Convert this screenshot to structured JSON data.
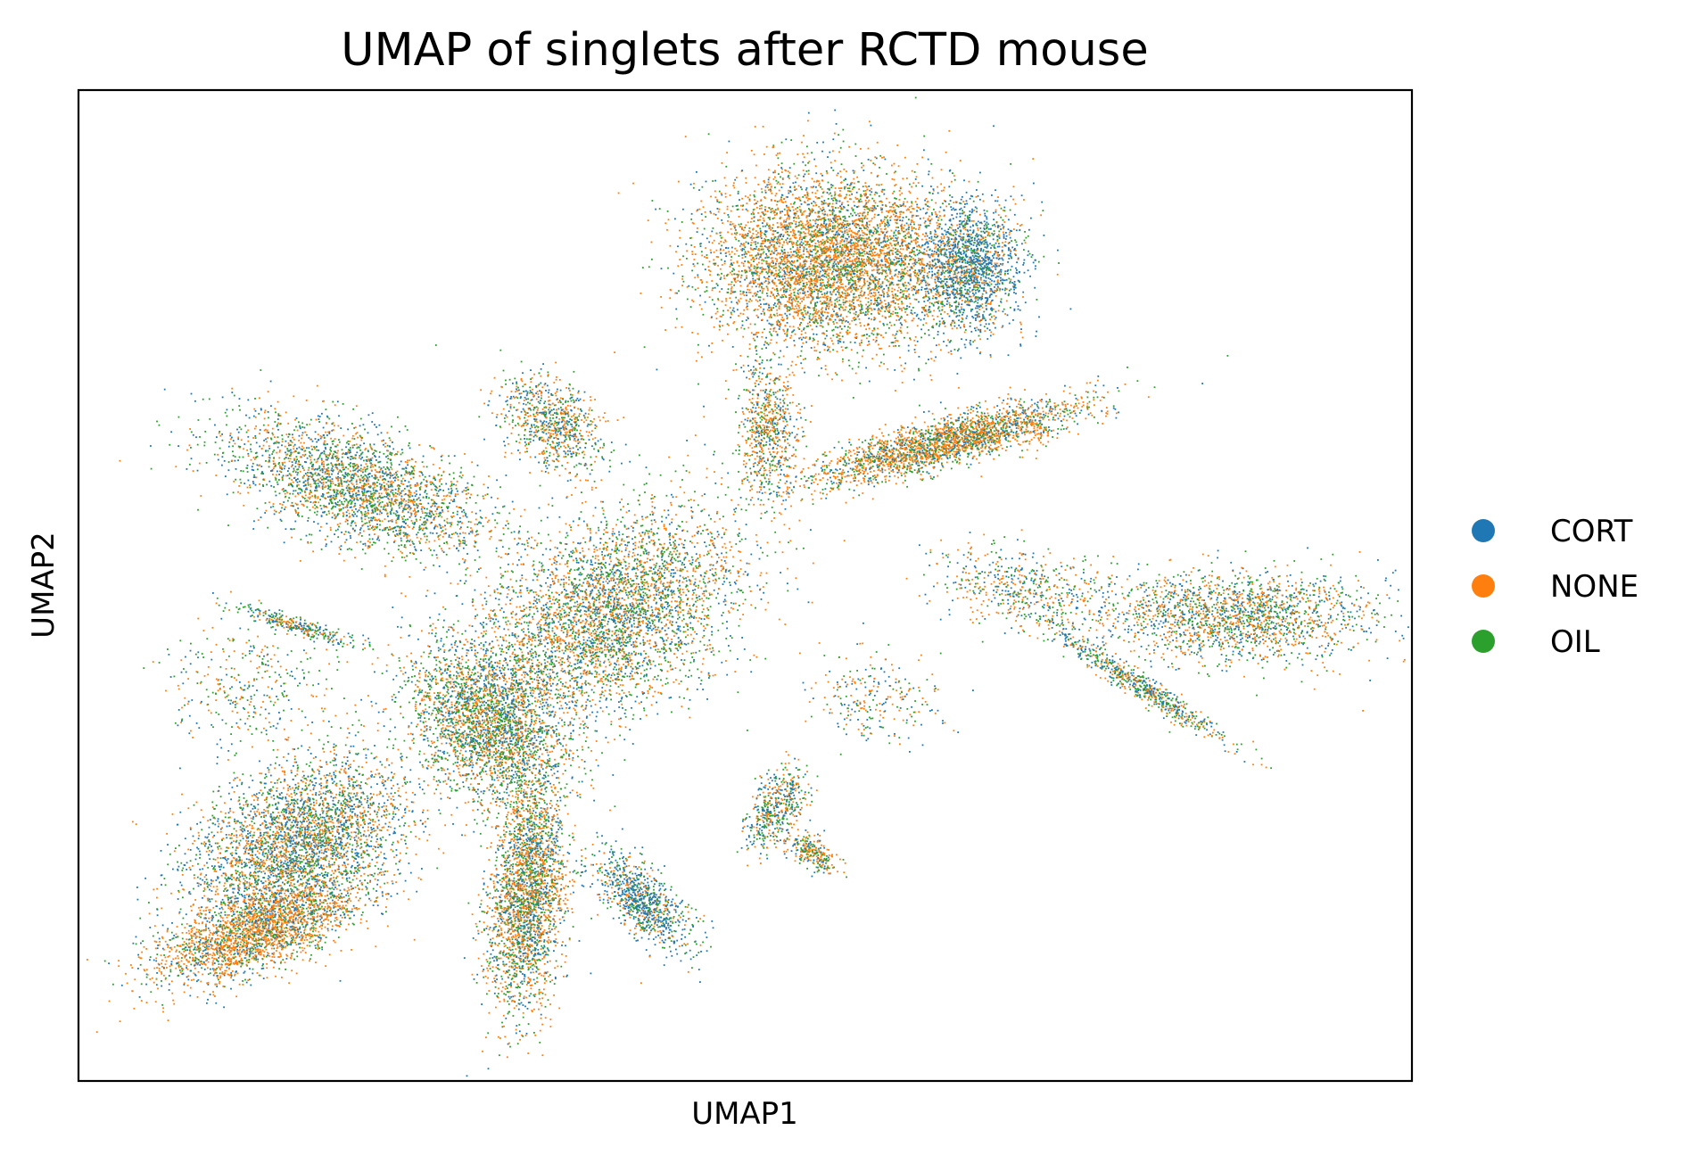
{
  "chart_data": {
    "type": "scatter",
    "title": "UMAP of singlets after RCTD mouse",
    "xlabel": "UMAP1",
    "ylabel": "UMAP2",
    "xticks": [],
    "yticks": [],
    "grid": false,
    "legend_position": "right",
    "series": [
      {
        "name": "CORT",
        "color": "#1f77b4"
      },
      {
        "name": "NONE",
        "color": "#ff7f0e"
      },
      {
        "name": "OIL",
        "color": "#2ca02c"
      }
    ]
  }
}
